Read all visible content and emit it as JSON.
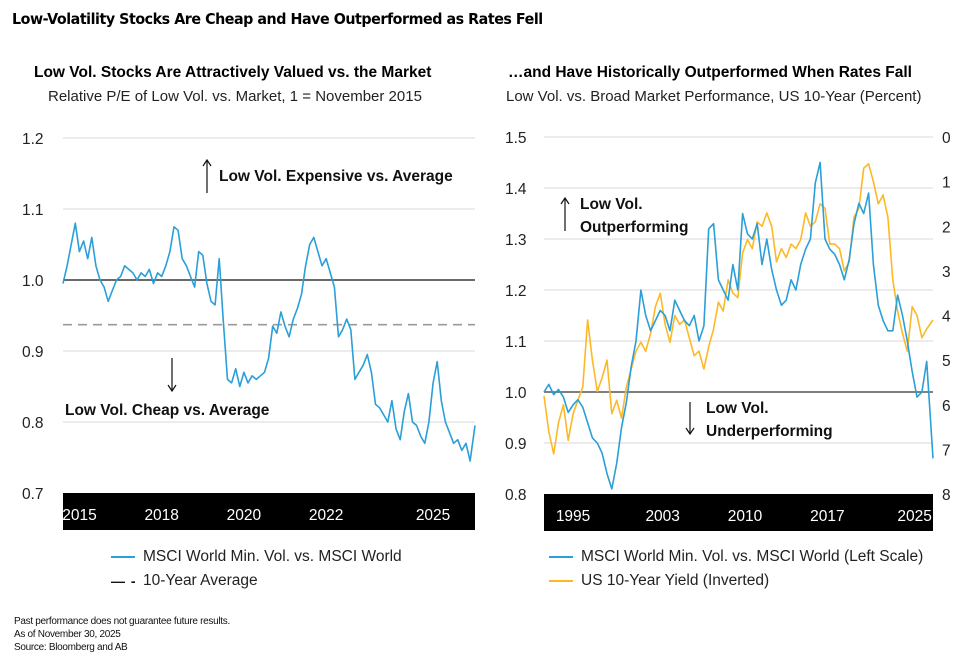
{
  "title": "Low-Volatility Stocks Are Cheap and Have Outperformed as Rates Fell",
  "colors": {
    "blue": "#2a9fd8",
    "gold": "#fdb827",
    "grid": "#d9d9d9",
    "ref": "#111111",
    "avg": "#9a9a9a",
    "band": "#000000"
  },
  "footnotes": [
    "Past performance does not guarantee future results.",
    "As of November 30, 2025",
    "Source: Bloomberg and AB"
  ],
  "left": {
    "title": "Low Vol. Stocks Are Attractively Valued vs. the Market",
    "subtitle": "Relative P/E of Low Vol. vs. Market, 1 = November 2015",
    "annotation_up": "Low Vol. Expensive vs. Average",
    "annotation_down": "Low Vol. Cheap vs. Average",
    "legend": [
      "MSCI World Min. Vol. vs. MSCI World",
      "10-Year Average"
    ]
  },
  "right": {
    "title": "…and Have Historically Outperformed When Rates Fall",
    "subtitle": "Low Vol. vs. Broad Market Performance, US 10-Year (Percent)",
    "annotation_up_1": "Low Vol.",
    "annotation_up_2": "Outperforming",
    "annotation_down_1": "Low Vol.",
    "annotation_down_2": "Underperforming",
    "legend": [
      "MSCI World Min. Vol. vs. MSCI World (Left Scale)",
      "US 10-Year Yield (Inverted)"
    ]
  },
  "chart_data": [
    {
      "type": "line",
      "title": "Low Vol. Stocks Are Attractively Valued vs. the Market",
      "subtitle": "Relative P/E of Low Vol. vs. Market, 1 = November 2015",
      "xlabel": "",
      "ylabel": "",
      "xlim": [
        2015.9,
        2025.92
      ],
      "ylim": [
        0.7,
        1.2
      ],
      "yticks": [
        0.7,
        0.8,
        0.9,
        1.0,
        1.1,
        1.2
      ],
      "ytick_labels": [
        "0.7",
        "0.8",
        "0.9",
        "1.0",
        "1.1",
        "1.2"
      ],
      "xtick_labels": [
        "2015",
        "2018",
        "2020",
        "2022",
        "2025"
      ],
      "xtick_positions": [
        2016.3,
        2018.3,
        2020.3,
        2022.3,
        2024.9
      ],
      "grid": true,
      "reference_line": 1.0,
      "average_line": 0.937,
      "legend_position": "bottom",
      "annotations": [
        "Low Vol. Expensive vs. Average",
        "Low Vol. Cheap vs. Average"
      ],
      "series": [
        {
          "name": "MSCI World Min. Vol. vs. MSCI World",
          "color": "#2a9fd8",
          "x": [
            2015.9,
            2016.0,
            2016.1,
            2016.2,
            2016.3,
            2016.4,
            2016.5,
            2016.6,
            2016.7,
            2016.8,
            2016.9,
            2017.0,
            2017.1,
            2017.2,
            2017.3,
            2017.4,
            2017.5,
            2017.6,
            2017.7,
            2017.8,
            2017.9,
            2018.0,
            2018.1,
            2018.2,
            2018.3,
            2018.4,
            2018.5,
            2018.6,
            2018.7,
            2018.8,
            2018.9,
            2019.0,
            2019.1,
            2019.2,
            2019.3,
            2019.4,
            2019.5,
            2019.6,
            2019.7,
            2019.8,
            2019.9,
            2020.0,
            2020.1,
            2020.2,
            2020.3,
            2020.4,
            2020.5,
            2020.6,
            2020.7,
            2020.8,
            2020.9,
            2021.0,
            2021.1,
            2021.2,
            2021.3,
            2021.4,
            2021.5,
            2021.6,
            2021.7,
            2021.8,
            2021.9,
            2022.0,
            2022.1,
            2022.2,
            2022.3,
            2022.4,
            2022.5,
            2022.6,
            2022.7,
            2022.8,
            2022.9,
            2023.0,
            2023.1,
            2023.2,
            2023.3,
            2023.4,
            2023.5,
            2023.6,
            2023.7,
            2023.8,
            2023.9,
            2024.0,
            2024.1,
            2024.2,
            2024.3,
            2024.4,
            2024.5,
            2024.6,
            2024.7,
            2024.8,
            2024.9,
            2025.0,
            2025.1,
            2025.2,
            2025.3,
            2025.4,
            2025.5,
            2025.6,
            2025.7,
            2025.8,
            2025.92
          ],
          "y": [
            0.995,
            1.02,
            1.05,
            1.08,
            1.04,
            1.055,
            1.03,
            1.06,
            1.02,
            1.0,
            0.99,
            0.97,
            0.985,
            1.0,
            1.005,
            1.02,
            1.015,
            1.01,
            1.0,
            1.01,
            1.005,
            1.015,
            0.995,
            1.01,
            1.005,
            1.02,
            1.04,
            1.075,
            1.07,
            1.03,
            1.02,
            1.005,
            0.99,
            1.04,
            1.035,
            0.995,
            0.97,
            0.965,
            1.03,
            0.94,
            0.86,
            0.855,
            0.875,
            0.85,
            0.87,
            0.855,
            0.865,
            0.86,
            0.865,
            0.87,
            0.89,
            0.935,
            0.925,
            0.955,
            0.935,
            0.92,
            0.945,
            0.96,
            0.98,
            1.02,
            1.05,
            1.06,
            1.04,
            1.02,
            1.03,
            1.01,
            0.99,
            0.92,
            0.93,
            0.945,
            0.93,
            0.86,
            0.87,
            0.88,
            0.895,
            0.87,
            0.825,
            0.82,
            0.81,
            0.8,
            0.83,
            0.79,
            0.775,
            0.815,
            0.84,
            0.8,
            0.795,
            0.78,
            0.77,
            0.8,
            0.855,
            0.885,
            0.83,
            0.8,
            0.785,
            0.77,
            0.775,
            0.76,
            0.77,
            0.745,
            0.795
          ]
        }
      ]
    },
    {
      "type": "line",
      "title": "…and Have Historically Outperformed When Rates Fall",
      "subtitle": "Low Vol. vs. Broad Market Performance, US 10-Year (Percent)",
      "xlabel": "",
      "ylabel": "",
      "xlim": [
        1993.8,
        2025.92
      ],
      "ylim": [
        0.8,
        1.5
      ],
      "y2lim": [
        8,
        0
      ],
      "yticks": [
        0.8,
        0.9,
        1.0,
        1.1,
        1.2,
        1.3,
        1.4,
        1.5
      ],
      "ytick_labels": [
        "0.8",
        "0.9",
        "1.0",
        "1.1",
        "1.2",
        "1.3",
        "1.4",
        "1.5"
      ],
      "y2ticks": [
        0,
        1,
        2,
        3,
        4,
        5,
        6,
        7,
        8
      ],
      "y2tick_labels": [
        "0",
        "1",
        "2",
        "3",
        "4",
        "5",
        "6",
        "7",
        "8"
      ],
      "xtick_labels": [
        "1995",
        "2003",
        "2010",
        "2017",
        "2025"
      ],
      "xtick_positions": [
        1996.2,
        2003.6,
        2010.4,
        2017.2,
        2024.4
      ],
      "grid": true,
      "reference_line": 1.0,
      "legend_position": "bottom",
      "annotations": [
        "Low Vol. Outperforming",
        "Low Vol. Underperforming"
      ],
      "series": [
        {
          "name": "MSCI World Min. Vol. vs. MSCI World (Left Scale)",
          "color": "#2a9fd8",
          "axis": "left",
          "x": [
            1993.8,
            1994.2,
            1994.6,
            1995.0,
            1995.4,
            1995.8,
            1996.2,
            1996.6,
            1997.0,
            1997.4,
            1997.8,
            1998.2,
            1998.6,
            1999.0,
            1999.4,
            1999.8,
            2000.2,
            2000.6,
            2001.0,
            2001.4,
            2001.8,
            2002.2,
            2002.6,
            2003.0,
            2003.4,
            2003.8,
            2004.2,
            2004.6,
            2005.0,
            2005.4,
            2005.8,
            2006.2,
            2006.6,
            2007.0,
            2007.4,
            2007.8,
            2008.2,
            2008.6,
            2009.0,
            2009.4,
            2009.8,
            2010.2,
            2010.6,
            2011.0,
            2011.4,
            2011.8,
            2012.2,
            2012.6,
            2013.0,
            2013.4,
            2013.8,
            2014.2,
            2014.6,
            2015.0,
            2015.4,
            2015.8,
            2016.2,
            2016.6,
            2017.0,
            2017.4,
            2017.8,
            2018.2,
            2018.6,
            2019.0,
            2019.4,
            2019.8,
            2020.2,
            2020.6,
            2021.0,
            2021.4,
            2021.8,
            2022.2,
            2022.6,
            2023.0,
            2023.4,
            2023.8,
            2024.2,
            2024.6,
            2025.0,
            2025.4,
            2025.92
          ],
          "y": [
            1.0,
            1.015,
            0.995,
            1.005,
            0.99,
            0.96,
            0.975,
            0.985,
            0.97,
            0.94,
            0.91,
            0.9,
            0.88,
            0.84,
            0.81,
            0.86,
            0.93,
            0.98,
            1.05,
            1.1,
            1.2,
            1.15,
            1.12,
            1.14,
            1.16,
            1.15,
            1.12,
            1.18,
            1.16,
            1.14,
            1.13,
            1.15,
            1.1,
            1.13,
            1.32,
            1.33,
            1.22,
            1.2,
            1.18,
            1.25,
            1.2,
            1.35,
            1.31,
            1.3,
            1.33,
            1.25,
            1.3,
            1.24,
            1.2,
            1.17,
            1.18,
            1.22,
            1.2,
            1.25,
            1.28,
            1.3,
            1.41,
            1.45,
            1.3,
            1.28,
            1.27,
            1.25,
            1.22,
            1.26,
            1.33,
            1.37,
            1.35,
            1.39,
            1.25,
            1.17,
            1.14,
            1.12,
            1.12,
            1.19,
            1.15,
            1.1,
            1.04,
            0.99,
            1.0,
            1.06,
            0.87
          ]
        },
        {
          "name": "US 10-Year Yield (Inverted)",
          "color": "#fdb827",
          "axis": "right",
          "x": [
            1993.8,
            1994.2,
            1994.6,
            1995.0,
            1995.4,
            1995.8,
            1996.2,
            1996.6,
            1997.0,
            1997.4,
            1997.8,
            1998.2,
            1998.6,
            1999.0,
            1999.4,
            1999.8,
            2000.2,
            2000.6,
            2001.0,
            2001.4,
            2001.8,
            2002.2,
            2002.6,
            2003.0,
            2003.4,
            2003.8,
            2004.2,
            2004.6,
            2005.0,
            2005.4,
            2005.8,
            2006.2,
            2006.6,
            2007.0,
            2007.4,
            2007.8,
            2008.2,
            2008.6,
            2009.0,
            2009.4,
            2009.8,
            2010.2,
            2010.6,
            2011.0,
            2011.4,
            2011.8,
            2012.2,
            2012.6,
            2013.0,
            2013.4,
            2013.8,
            2014.2,
            2014.6,
            2015.0,
            2015.4,
            2015.8,
            2016.2,
            2016.6,
            2017.0,
            2017.4,
            2017.8,
            2018.2,
            2018.6,
            2019.0,
            2019.4,
            2019.8,
            2020.2,
            2020.6,
            2021.0,
            2021.4,
            2021.8,
            2022.2,
            2022.6,
            2023.0,
            2023.4,
            2023.8,
            2024.2,
            2024.6,
            2025.0,
            2025.4,
            2025.92
          ],
          "y": [
            5.8,
            6.6,
            7.1,
            6.4,
            6.0,
            6.8,
            6.2,
            5.9,
            5.6,
            4.1,
            5.0,
            5.7,
            5.4,
            5.0,
            6.2,
            5.9,
            6.3,
            5.6,
            5.2,
            4.8,
            4.6,
            4.8,
            4.4,
            3.8,
            3.5,
            4.2,
            4.6,
            4.0,
            4.2,
            4.1,
            4.5,
            4.9,
            4.8,
            5.2,
            4.7,
            4.3,
            3.7,
            3.9,
            3.2,
            3.5,
            3.6,
            2.6,
            2.3,
            2.5,
            1.9,
            2.0,
            1.7,
            2.0,
            2.8,
            2.5,
            2.7,
            2.4,
            2.5,
            2.3,
            1.7,
            2.0,
            1.9,
            1.5,
            1.6,
            2.4,
            2.4,
            2.5,
            3.0,
            2.8,
            1.8,
            1.6,
            0.7,
            0.6,
            1.0,
            1.5,
            1.3,
            1.8,
            3.2,
            3.9,
            4.4,
            4.8,
            3.8,
            4.0,
            4.5,
            4.3,
            4.1
          ]
        }
      ]
    }
  ]
}
